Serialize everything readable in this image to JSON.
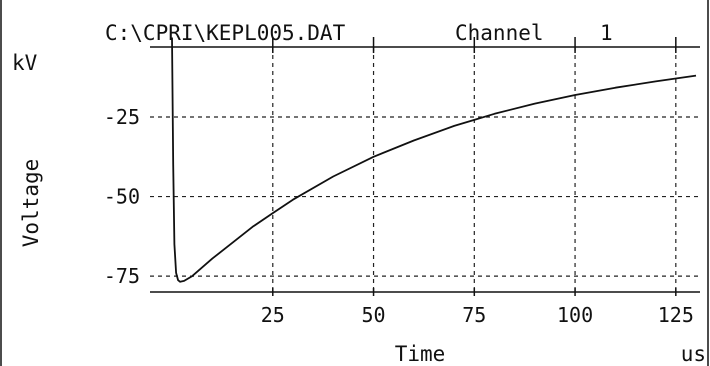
{
  "chart_data": {
    "type": "line",
    "title": "C:\\CPRI\\KEPL005.DAT",
    "channel_label": "Channel",
    "channel_number": "1",
    "xlabel": "Time",
    "xunit": "us",
    "ylabel": "Voltage",
    "yunit": "kV",
    "xlim": [
      -1,
      131
    ],
    "ylim": [
      -80,
      -3
    ],
    "x_ticks": [
      25,
      50,
      75,
      100,
      125
    ],
    "x_tick_labels": [
      "25",
      "50",
      "75",
      "100",
      "125"
    ],
    "y_ticks": [
      -25,
      -50,
      -75
    ],
    "y_tick_labels": [
      "-25",
      "-50",
      "-75"
    ],
    "grid": true,
    "grid_style": "dashed",
    "series": [
      {
        "color": "#111111",
        "x": [
          0,
          0.3,
          0.6,
          1.0,
          1.5,
          2,
          3,
          5,
          10,
          15,
          20,
          25,
          30,
          40,
          50,
          60,
          70,
          75,
          80,
          90,
          100,
          110,
          120,
          125,
          130
        ],
        "y": [
          0,
          -40,
          -65,
          -74,
          -76.3,
          -76.8,
          -76.5,
          -75.0,
          -69.5,
          -64.5,
          -59.5,
          -55.2,
          -51.0,
          -43.7,
          -37.5,
          -32.4,
          -27.8,
          -25.9,
          -24.0,
          -20.8,
          -18.1,
          -15.8,
          -13.8,
          -12.9,
          -12.0
        ]
      }
    ]
  }
}
